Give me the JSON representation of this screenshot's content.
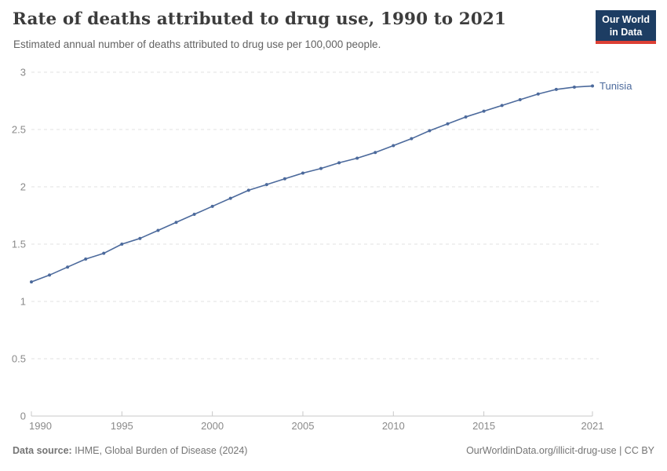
{
  "header": {
    "title": "Rate of deaths attributed to drug use, 1990 to 2021",
    "subtitle": "Estimated annual number of deaths attributed to drug use per 100,000 people.",
    "logo": {
      "line1": "Our World",
      "line2": "in Data",
      "bg": "#1d3d63",
      "accent": "#dc3f34"
    }
  },
  "footer": {
    "datasource_label": "Data source:",
    "datasource_value": "IHME, Global Burden of Disease (2024)",
    "link": "OurWorldinData.org/illicit-drug-use",
    "separator": "|",
    "license": "CC BY"
  },
  "colors": {
    "series_blue": "#4C6A9C",
    "gridline": "#e0e0e0",
    "axis_line": "#c8c8c8",
    "tick_text": "#8a8a8a",
    "title_text": "#3c3c3c",
    "subtitle_text": "#636363",
    "footer_text": "#757575"
  },
  "chart_data": {
    "type": "line",
    "title": "Rate of deaths attributed to drug use, 1990 to 2021",
    "subtitle": "Estimated annual number of deaths attributed to drug use per 100,000 people.",
    "xlabel": "",
    "ylabel": "",
    "xlim": [
      1990,
      2021
    ],
    "ylim": [
      0,
      3
    ],
    "x_ticks": [
      1990,
      1995,
      2000,
      2005,
      2010,
      2015,
      2021
    ],
    "y_ticks": [
      0,
      0.5,
      1,
      1.5,
      2,
      2.5,
      3
    ],
    "grid": "horizontal-dashed",
    "legend_position": "end-of-line-label",
    "entity_label": "Tunisia",
    "series": [
      {
        "name": "Tunisia",
        "color": "#4C6A9C",
        "x": [
          1990,
          1991,
          1992,
          1993,
          1994,
          1995,
          1996,
          1997,
          1998,
          1999,
          2000,
          2001,
          2002,
          2003,
          2004,
          2005,
          2006,
          2007,
          2008,
          2009,
          2010,
          2011,
          2012,
          2013,
          2014,
          2015,
          2016,
          2017,
          2018,
          2019,
          2020,
          2021
        ],
        "values": [
          1.17,
          1.23,
          1.3,
          1.37,
          1.42,
          1.5,
          1.55,
          1.62,
          1.69,
          1.76,
          1.83,
          1.9,
          1.97,
          2.02,
          2.07,
          2.12,
          2.16,
          2.21,
          2.25,
          2.3,
          2.36,
          2.42,
          2.49,
          2.55,
          2.61,
          2.66,
          2.71,
          2.76,
          2.81,
          2.85,
          2.87,
          2.88
        ]
      }
    ]
  }
}
